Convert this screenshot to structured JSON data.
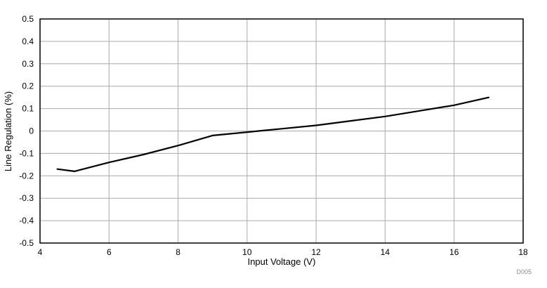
{
  "figure": {
    "id_label": "D005"
  },
  "style": {
    "background": "#ffffff",
    "grid_color": "#aaaaaa",
    "axis_color": "#000000",
    "line_color": "#000000",
    "figure_id_color": "#8c8c8c"
  },
  "chart_data": {
    "type": "line",
    "title": "",
    "xlabel": "Input Voltage (V)",
    "ylabel": "Line Regulation (%)",
    "xlim": [
      4,
      18
    ],
    "ylim": [
      -0.5,
      0.5
    ],
    "grid": true,
    "legend": null,
    "x_ticks": [
      4,
      6,
      8,
      10,
      12,
      14,
      16,
      18
    ],
    "x_tick_labels": [
      "4",
      "6",
      "8",
      "10",
      "12",
      "14",
      "16",
      "18"
    ],
    "y_ticks": [
      -0.5,
      -0.4,
      -0.3,
      -0.2,
      -0.1,
      0,
      0.1,
      0.2,
      0.3,
      0.4,
      0.5
    ],
    "y_tick_labels": [
      "-0.5",
      "-0.4",
      "-0.3",
      "-0.2",
      "-0.1",
      "0",
      "0.1",
      "0.2",
      "0.3",
      "0.4",
      "0.5"
    ],
    "annotations": [
      "D005"
    ],
    "series": [
      {
        "name": "line-regulation",
        "x": [
          4.5,
          5,
          6,
          7,
          8,
          9,
          10,
          11,
          12,
          13,
          14,
          15,
          16,
          17
        ],
        "y": [
          -0.17,
          -0.18,
          -0.14,
          -0.105,
          -0.065,
          -0.02,
          -0.005,
          0.01,
          0.025,
          0.045,
          0.065,
          0.09,
          0.115,
          0.15
        ]
      }
    ]
  }
}
